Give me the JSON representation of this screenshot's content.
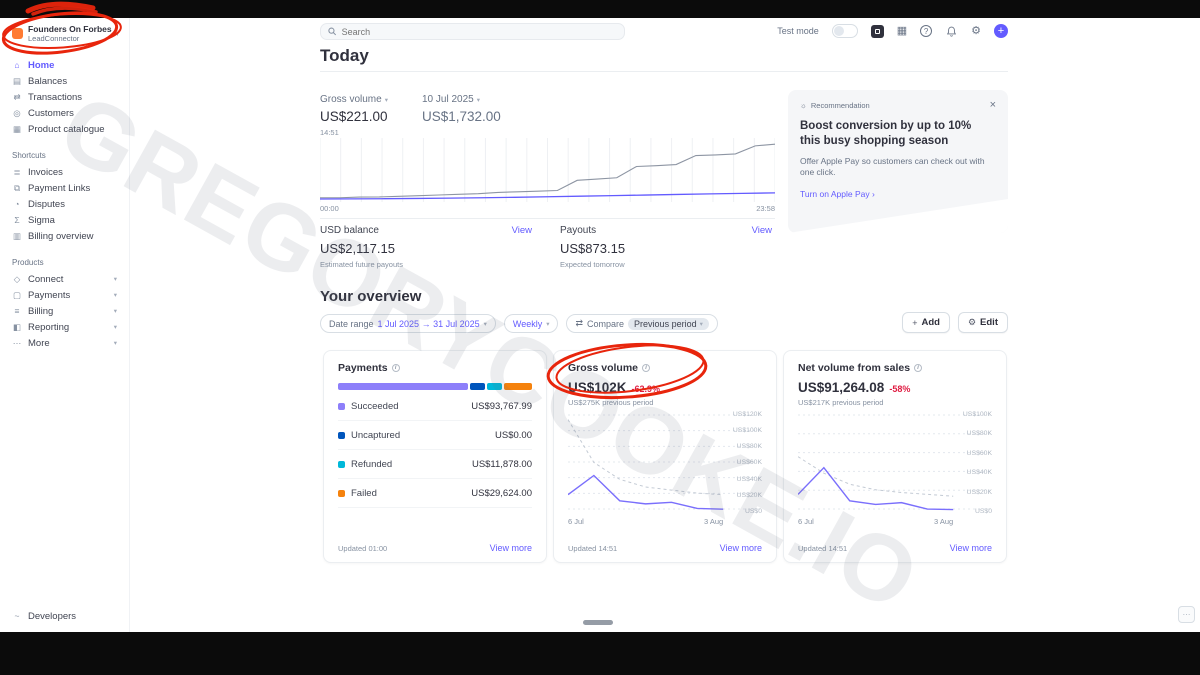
{
  "watermark": "GREGORYCOOKE.IO",
  "icons": {
    "home": "⌂",
    "balances": "▤",
    "transactions": "⇄",
    "customers": "◎",
    "product_catalogue": "▦",
    "invoices": "≣",
    "payment_links": "⧉",
    "disputes": "◔",
    "sigma": "Σ",
    "billing_overview": "▥",
    "connect": "◇",
    "payments": "▢",
    "billing": "≡",
    "reporting": "◧",
    "more": "⋯",
    "developers": "~",
    "grid": "▦",
    "gear": "⚙",
    "help": "?",
    "plus": "+",
    "bulb": "☼",
    "close": "×",
    "compare": "⇄",
    "chevron": "▾",
    "info": "i",
    "sandbox": ""
  },
  "topbar": {
    "search_placeholder": "Search",
    "test_mode_label": "Test mode"
  },
  "sidebar": {
    "account_name": "Founders On Forbes",
    "account_org": "LeadConnector",
    "main": [
      {
        "label": "Home"
      },
      {
        "label": "Balances"
      },
      {
        "label": "Transactions"
      },
      {
        "label": "Customers"
      },
      {
        "label": "Product catalogue"
      }
    ],
    "shortcuts_label": "Shortcuts",
    "shortcuts": [
      {
        "label": "Invoices"
      },
      {
        "label": "Payment Links"
      },
      {
        "label": "Disputes"
      },
      {
        "label": "Sigma"
      },
      {
        "label": "Billing overview"
      }
    ],
    "products_label": "Products",
    "products": [
      {
        "label": "Connect"
      },
      {
        "label": "Payments"
      },
      {
        "label": "Billing"
      },
      {
        "label": "Reporting"
      },
      {
        "label": "More"
      }
    ],
    "developers_label": "Developers"
  },
  "today": {
    "title": "Today",
    "gross_label": "Gross volume",
    "gross_value": "US$221.00",
    "time_marker": "14:51",
    "compare_label": "10 Jul 2025",
    "compare_value": "US$1,732.00",
    "axis_start": "00:00",
    "axis_end": "23:58",
    "usd_balance_label": "USD balance",
    "usd_balance_value": "US$2,117.15",
    "usd_balance_sub": "Estimated future payouts",
    "usd_balance_view": "View",
    "payouts_label": "Payouts",
    "payouts_value": "US$873.15",
    "payouts_sub": "Expected tomorrow",
    "payouts_view": "View"
  },
  "recommendation": {
    "badge": "Recommendation",
    "title": "Boost conversion by up to 10% this busy shopping season",
    "body": "Offer Apple Pay so customers can check out with one click.",
    "cta": "Turn on Apple Pay ›"
  },
  "overview": {
    "title": "Your overview",
    "date_range_label": "Date range",
    "date_range_value": "1 Jul 2025 → 31 Jul 2025",
    "interval": "Weekly",
    "compare_label": "Compare",
    "compare_value": "Previous period",
    "add_label": "Add",
    "edit_label": "Edit"
  },
  "cards": {
    "payments": {
      "title": "Payments",
      "segments": [
        {
          "style": "width:69%;background:#8d7ffa"
        },
        {
          "style": "width:8%;background:#0055bc"
        },
        {
          "style": "width:8%;background:#00b8d9"
        },
        {
          "style": "width:15%;background:#f5820d"
        }
      ],
      "rows": [
        {
          "label": "Succeeded",
          "value": "US$93,767.99",
          "dot": "background:#8d7ffa"
        },
        {
          "label": "Uncaptured",
          "value": "US$0.00",
          "dot": "background:#0055bc"
        },
        {
          "label": "Refunded",
          "value": "US$11,878.00",
          "dot": "background:#00b8d9"
        },
        {
          "label": "Failed",
          "value": "US$29,624.00",
          "dot": "background:#f5820d"
        }
      ],
      "updated": "Updated 01:00",
      "view_more": "View more"
    },
    "gross": {
      "title": "Gross volume",
      "value": "US$102K",
      "delta": "-62.9%",
      "previous": "US$275K previous period",
      "y_labels": [
        "US$120K",
        "US$100K",
        "US$80K",
        "US$60K",
        "US$40K",
        "US$20K",
        "US$0"
      ],
      "x_start": "6 Jul",
      "x_end": "3 Aug",
      "updated": "Updated 14:51",
      "view_more": "View more"
    },
    "net": {
      "title": "Net volume from sales",
      "value": "US$91,264.08",
      "delta": "-58%",
      "previous": "US$217K previous period",
      "y_labels": [
        "US$100K",
        "US$80K",
        "US$60K",
        "US$40K",
        "US$20K",
        "US$0"
      ],
      "x_start": "6 Jul",
      "x_end": "3 Aug",
      "updated": "Updated 14:51",
      "view_more": "View more"
    }
  },
  "charts": {
    "today": {
      "ymax": 1800,
      "vgrid": 22,
      "series": [
        {
          "color": "#8d95a3",
          "width": 1.1,
          "values": [
            70,
            70,
            90,
            95,
            115,
            135,
            155,
            175,
            195,
            235,
            255,
            275,
            295,
            610,
            650,
            690,
            1040,
            1065,
            1100,
            1380,
            1400,
            1430,
            1680,
            1732
          ]
        },
        {
          "color": "#635bff",
          "width": 1.3,
          "values": [
            30,
            34,
            40,
            48,
            58,
            70,
            84,
            100,
            118,
            136,
            154,
            172,
            190,
            205,
            221
          ]
        }
      ]
    },
    "gross": {
      "ymax": 120,
      "hgrid": 7,
      "series": [
        {
          "color": "#c3cad4",
          "width": 1,
          "dash": "3 3",
          "span": 0.8,
          "values": [
            118,
            62,
            40,
            30,
            26,
            22,
            20
          ]
        },
        {
          "color": "#7a6ffc",
          "width": 1.4,
          "span": 0.8,
          "values": [
            20,
            45,
            12,
            8,
            10,
            2,
            1
          ]
        }
      ]
    },
    "net": {
      "ymax": 100,
      "hgrid": 6,
      "series": [
        {
          "color": "#c3cad4",
          "width": 1,
          "dash": "3 3",
          "span": 0.8,
          "values": [
            58,
            40,
            28,
            22,
            19,
            17,
            15
          ]
        },
        {
          "color": "#7a6ffc",
          "width": 1.4,
          "span": 0.8,
          "values": [
            17,
            46,
            10,
            6,
            8,
            1,
            0.5
          ]
        }
      ]
    }
  }
}
